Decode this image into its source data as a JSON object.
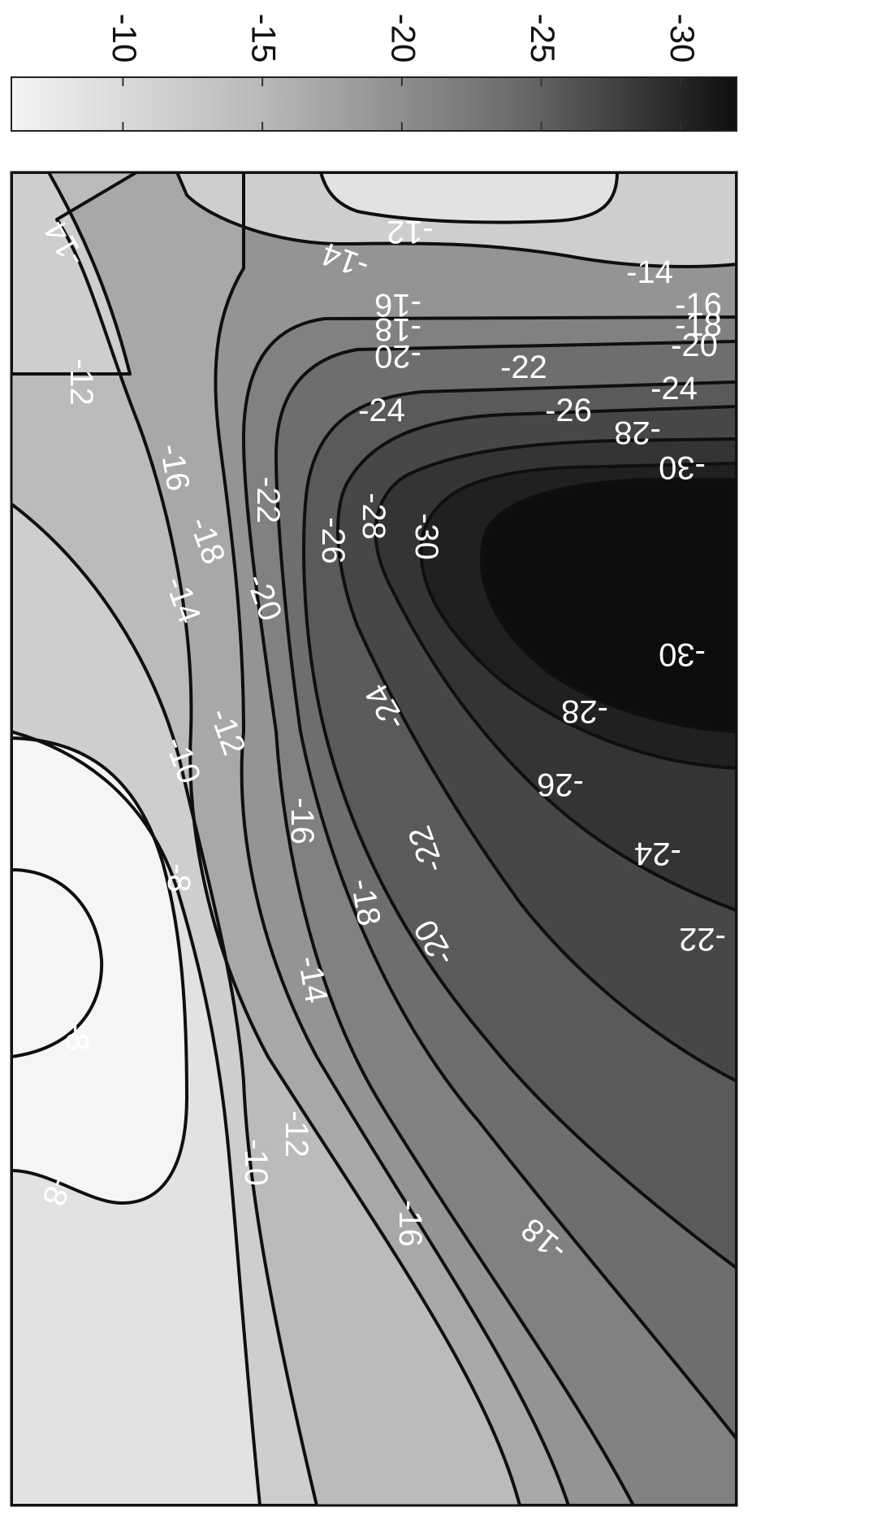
{
  "chart_data": {
    "type": "heatmap",
    "style": "filled contour plot, figure rotated 90 degrees clockwise",
    "colormap": "grayscale, light (high) to dark (low)",
    "colorbar": {
      "placement": "top",
      "range": [
        -32,
        -6
      ],
      "ticks": [
        -10,
        -15,
        -20,
        -25,
        -30
      ],
      "tick_labels": [
        "-10",
        "-15",
        "-20",
        "-25",
        "-30"
      ]
    },
    "contour_levels": [
      -30,
      -28,
      -26,
      -24,
      -22,
      -20,
      -18,
      -16,
      -14,
      -12,
      -10,
      -8
    ],
    "contour_labels": [
      {
        "text": "-14"
      },
      {
        "text": "-12"
      },
      {
        "text": "-12"
      },
      {
        "text": "-14"
      },
      {
        "text": "-16"
      },
      {
        "text": "-18"
      },
      {
        "text": "-20"
      },
      {
        "text": "-22"
      },
      {
        "text": "-24"
      },
      {
        "text": "-14"
      },
      {
        "text": "-16"
      },
      {
        "text": "-18"
      },
      {
        "text": "-20"
      },
      {
        "text": "-24"
      },
      {
        "text": "-26"
      },
      {
        "text": "-28"
      },
      {
        "text": "-30"
      },
      {
        "text": "-16"
      },
      {
        "text": "-22"
      },
      {
        "text": "-26"
      },
      {
        "text": "-28"
      },
      {
        "text": "-30"
      },
      {
        "text": "-18"
      },
      {
        "text": "-14"
      },
      {
        "text": "-20"
      },
      {
        "text": "-30"
      },
      {
        "text": "-28"
      },
      {
        "text": "-24"
      },
      {
        "text": "-10"
      },
      {
        "text": "-12"
      },
      {
        "text": "-26"
      },
      {
        "text": "-16"
      },
      {
        "text": "-8"
      },
      {
        "text": "-22"
      },
      {
        "text": "-24"
      },
      {
        "text": "-18"
      },
      {
        "text": "-20"
      },
      {
        "text": "-22"
      },
      {
        "text": "-14"
      },
      {
        "text": "-8"
      },
      {
        "text": "-12"
      },
      {
        "text": "-10"
      },
      {
        "text": "-16"
      },
      {
        "text": "-8"
      },
      {
        "text": "-18"
      }
    ],
    "minimum_region": "near -30 and below at the lower right",
    "maximum_region": "near -8 and above at the left edge",
    "grid": false,
    "title": "",
    "xlabel": "",
    "ylabel": ""
  }
}
